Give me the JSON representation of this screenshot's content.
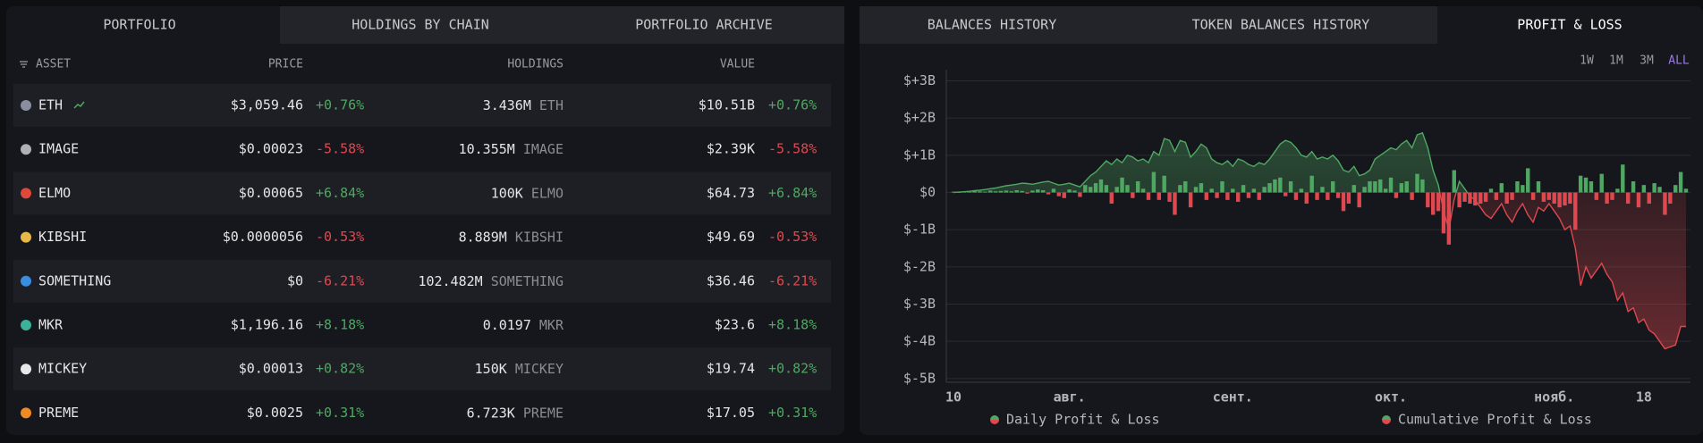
{
  "portfolio": {
    "tabs": [
      "PORTFOLIO",
      "HOLDINGS BY CHAIN",
      "PORTFOLIO ARCHIVE"
    ],
    "columns": [
      "ASSET",
      "PRICE",
      "HOLDINGS",
      "VALUE"
    ],
    "rows": [
      {
        "asset": "ETH",
        "price": "$3,059.46",
        "price_change": "+0.76%",
        "holdings": "3.436M",
        "symbol": "ETH",
        "value": "$10.51B",
        "value_change": "+0.76%"
      },
      {
        "asset": "IMAGE",
        "price": "$0.00023",
        "price_change": "-5.58%",
        "holdings": "10.355M",
        "symbol": "IMAGE",
        "value": "$2.39K",
        "value_change": "-5.58%"
      },
      {
        "asset": "ELMO",
        "price": "$0.00065",
        "price_change": "+6.84%",
        "holdings": "100K",
        "symbol": "ELMO",
        "value": "$64.73",
        "value_change": "+6.84%"
      },
      {
        "asset": "KIBSHI",
        "price": "$0.0000056",
        "price_change": "-0.53%",
        "holdings": "8.889M",
        "symbol": "KIBSHI",
        "value": "$49.69",
        "value_change": "-0.53%"
      },
      {
        "asset": "SOMETHING",
        "price": "$0",
        "price_change": "-6.21%",
        "holdings": "102.482M",
        "symbol": "SOMETHING",
        "value": "$36.46",
        "value_change": "-6.21%"
      },
      {
        "asset": "MKR",
        "price": "$1,196.16",
        "price_change": "+8.18%",
        "holdings": "0.0197",
        "symbol": "MKR",
        "value": "$23.6",
        "value_change": "+8.18%"
      },
      {
        "asset": "MICKEY",
        "price": "$0.00013",
        "price_change": "+0.82%",
        "holdings": "150K",
        "symbol": "MICKEY",
        "value": "$19.74",
        "value_change": "+0.82%"
      },
      {
        "asset": "PREME",
        "price": "$0.0025",
        "price_change": "+0.31%",
        "holdings": "6.723K",
        "symbol": "PREME",
        "value": "$17.05",
        "value_change": "+0.31%"
      }
    ]
  },
  "history": {
    "tabs": [
      "BALANCES HISTORY",
      "TOKEN BALANCES HISTORY",
      "PROFIT & LOSS"
    ],
    "ranges": [
      "1W",
      "1M",
      "3M",
      "ALL"
    ]
  },
  "chart_data": {
    "type": "bar",
    "ylim": [
      -5.1,
      3.3
    ],
    "yticks": [
      {
        "value": 3,
        "label": "$+3B"
      },
      {
        "value": 2,
        "label": "$+2B"
      },
      {
        "value": 1,
        "label": "$+1B"
      },
      {
        "value": 0,
        "label": "$0"
      },
      {
        "value": -1,
        "label": "$-1B"
      },
      {
        "value": -2,
        "label": "$-2B"
      },
      {
        "value": -3,
        "label": "$-3B"
      },
      {
        "value": -4,
        "label": "$-4B"
      },
      {
        "value": -5,
        "label": "$-5B"
      }
    ],
    "grid": true,
    "categories": [
      "10",
      null,
      null,
      null,
      null,
      null,
      null,
      null,
      null,
      null,
      null,
      null,
      null,
      null,
      null,
      null,
      null,
      null,
      null,
      null,
      null,
      null,
      "авг.",
      null,
      null,
      null,
      null,
      null,
      null,
      null,
      null,
      null,
      null,
      null,
      null,
      null,
      null,
      null,
      null,
      null,
      null,
      null,
      null,
      null,
      null,
      null,
      null,
      null,
      null,
      null,
      null,
      null,
      null,
      "сент.",
      null,
      null,
      null,
      null,
      null,
      null,
      null,
      null,
      null,
      null,
      null,
      null,
      null,
      null,
      null,
      null,
      null,
      null,
      null,
      null,
      null,
      null,
      null,
      null,
      null,
      null,
      null,
      null,
      null,
      "окт.",
      null,
      null,
      null,
      null,
      null,
      null,
      null,
      null,
      null,
      null,
      null,
      null,
      null,
      null,
      null,
      null,
      null,
      null,
      null,
      null,
      null,
      null,
      null,
      null,
      null,
      null,
      null,
      null,
      null,
      null,
      "нояб.",
      null,
      null,
      null,
      null,
      null,
      null,
      null,
      null,
      null,
      null,
      null,
      null,
      null,
      null,
      null,
      null,
      "18",
      null,
      null,
      null,
      null,
      null,
      null,
      null,
      null
    ],
    "series": [
      {
        "name": "Daily Profit & Loss",
        "type": "bar",
        "color": "#4fa862",
        "negative_color": "#e0484f",
        "values": [
          0.02,
          0.01,
          0.03,
          0.02,
          0.04,
          0.03,
          0.02,
          0.05,
          0.03,
          0.04,
          0.05,
          0.03,
          0.06,
          0.04,
          -0.03,
          0.05,
          0.08,
          0.06,
          -0.05,
          0.1,
          -0.1,
          -0.15,
          0.08,
          0.05,
          -0.12,
          0.2,
          0.15,
          0.25,
          0.35,
          0.2,
          -0.3,
          0.15,
          0.4,
          0.2,
          -0.15,
          0.3,
          0.1,
          -0.2,
          0.55,
          -0.2,
          0.45,
          -0.25,
          -0.6,
          0.2,
          0.3,
          -0.4,
          0.15,
          0.25,
          -0.2,
          0.1,
          -0.15,
          0.3,
          -0.2,
          0.1,
          -0.25,
          0.2,
          -0.15,
          0.1,
          -0.2,
          0.15,
          0.25,
          0.35,
          0.4,
          -0.1,
          0.3,
          -0.2,
          0.1,
          -0.3,
          0.45,
          -0.2,
          0.15,
          -0.2,
          0.3,
          -0.15,
          -0.5,
          -0.3,
          0.2,
          -0.4,
          0.15,
          0.3,
          0.3,
          0.35,
          0.1,
          0.4,
          -0.15,
          0.25,
          0.3,
          -0.2,
          0.5,
          0.35,
          -0.4,
          -0.6,
          -0.5,
          -1.1,
          -1.4,
          0.6,
          -0.4,
          -0.25,
          -0.3,
          -0.35,
          -0.3,
          -0.25,
          0.1,
          -0.2,
          0.25,
          -0.3,
          -0.2,
          0.3,
          0.2,
          0.65,
          -0.2,
          0.3,
          -0.25,
          -0.2,
          -0.3,
          -0.4,
          -0.35,
          -0.3,
          -1.0,
          0.45,
          0.4,
          0.3,
          -0.2,
          0.5,
          -0.3,
          -0.2,
          0.1,
          0.75,
          -0.3,
          0.3,
          -0.4,
          0.2,
          -0.3,
          0.25,
          0.15,
          -0.6,
          -0.3,
          0.2,
          0.55,
          0.1
        ]
      },
      {
        "name": "Cumulative Profit & Loss",
        "type": "line",
        "color": "#4fa862",
        "negative_color": "#e0484f",
        "values": [
          0,
          0.01,
          0.02,
          0.03,
          0.05,
          0.06,
          0.08,
          0.1,
          0.12,
          0.15,
          0.18,
          0.2,
          0.22,
          0.25,
          0.24,
          0.22,
          0.25,
          0.28,
          0.3,
          0.25,
          0.2,
          0.22,
          0.25,
          0.2,
          0.15,
          0.3,
          0.45,
          0.55,
          0.7,
          0.85,
          0.75,
          0.9,
          0.8,
          1.0,
          0.95,
          0.85,
          0.9,
          0.8,
          1.1,
          1.0,
          1.45,
          1.4,
          1.1,
          1.4,
          1.35,
          0.95,
          1.1,
          1.3,
          1.2,
          0.9,
          0.8,
          0.75,
          0.85,
          0.7,
          0.9,
          0.85,
          0.75,
          0.7,
          0.8,
          0.75,
          0.9,
          1.1,
          1.3,
          1.4,
          1.35,
          1.2,
          1.0,
          0.95,
          1.1,
          0.9,
          0.95,
          0.9,
          1.0,
          0.85,
          0.6,
          0.55,
          0.7,
          0.45,
          0.5,
          0.6,
          0.9,
          1.0,
          1.1,
          1.2,
          1.15,
          1.3,
          1.4,
          1.2,
          1.55,
          1.6,
          1.2,
          0.6,
          0.2,
          -0.5,
          -1.0,
          -0.2,
          0.3,
          0.1,
          -0.1,
          -0.2,
          -0.4,
          -0.6,
          -0.7,
          -0.5,
          -0.3,
          -0.6,
          -0.8,
          -0.5,
          -0.3,
          -0.6,
          -0.8,
          -0.4,
          -0.5,
          -0.3,
          -0.5,
          -0.7,
          -1.0,
          -0.9,
          -1.5,
          -2.5,
          -2.0,
          -2.3,
          -2.1,
          -1.9,
          -2.2,
          -2.4,
          -2.9,
          -2.7,
          -3.2,
          -3.1,
          -3.5,
          -3.4,
          -3.7,
          -3.8,
          -4.0,
          -4.2,
          -4.15,
          -4.1,
          -3.6,
          -3.6
        ]
      }
    ]
  }
}
